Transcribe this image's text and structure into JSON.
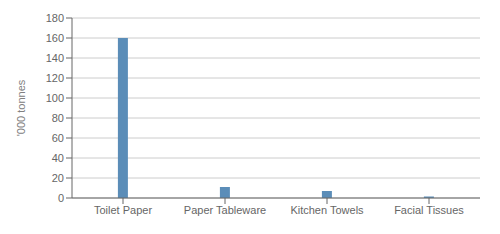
{
  "chart_data": {
    "type": "bar",
    "categories": [
      "Toilet Paper",
      "Paper Tableware",
      "Kitchen Towels",
      "Facial Tissues"
    ],
    "values": [
      160,
      11,
      7,
      1.5
    ],
    "color": "#5b8db8",
    "ylabel": "'000 tonnes",
    "ylim": [
      0,
      180
    ],
    "yticks": [
      0,
      20,
      40,
      60,
      80,
      100,
      120,
      140,
      160,
      180
    ],
    "grid": true
  }
}
